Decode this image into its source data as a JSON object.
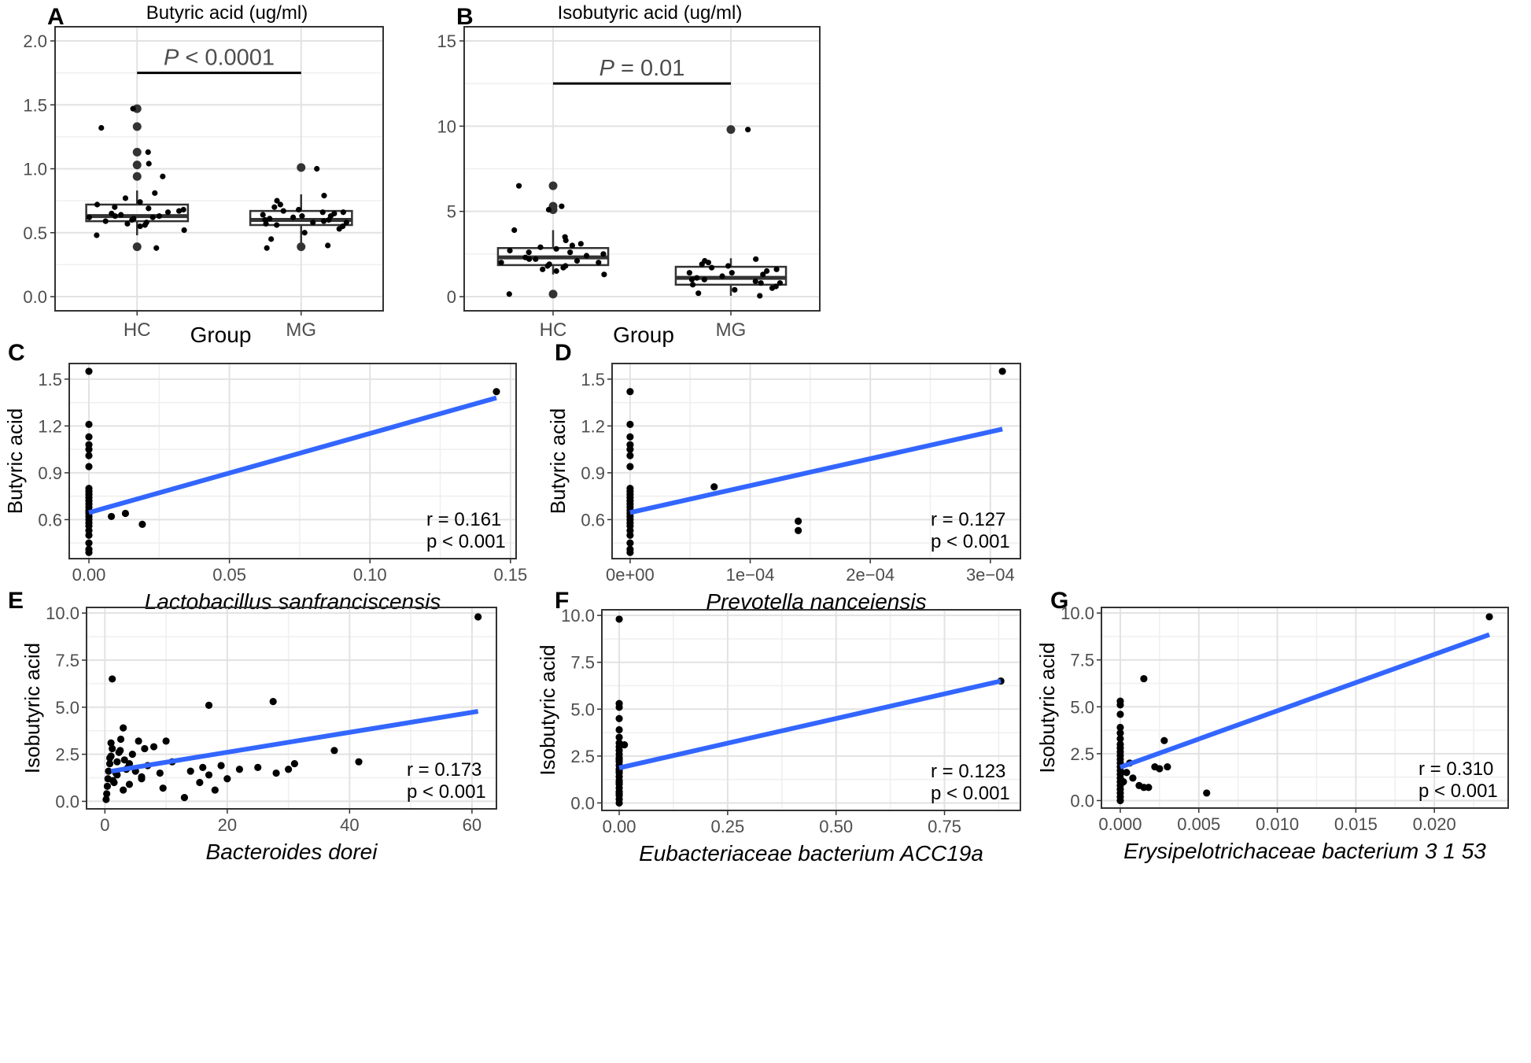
{
  "chart_data": [
    {
      "id": "A",
      "type": "box",
      "panel_label": "A",
      "title": "Butyric acid (ug/ml)",
      "xlabel": "Group",
      "categories": [
        "HC",
        "MG"
      ],
      "ylim": [
        0,
        2.0
      ],
      "yticks": [
        "0.0",
        "0.5",
        "1.0",
        "1.5",
        "2.0"
      ],
      "ytick_values": [
        0,
        0.5,
        1.0,
        1.5,
        2.0
      ],
      "boxes": [
        {
          "group": "HC",
          "q1": 0.59,
          "median": 0.63,
          "q3": 0.72,
          "whisker_low": 0.48,
          "whisker_high": 0.83,
          "outliers": [
            0.94,
            1.03,
            1.13,
            1.33,
            1.47,
            0.39
          ]
        },
        {
          "group": "MG",
          "q1": 0.56,
          "median": 0.6,
          "q3": 0.67,
          "whisker_low": 0.42,
          "whisker_high": 0.8,
          "outliers": [
            1.01,
            0.39
          ]
        }
      ],
      "points": {
        "HC": [
          0.38,
          0.48,
          0.52,
          0.55,
          0.57,
          0.58,
          0.6,
          0.61,
          0.62,
          0.63,
          0.64,
          0.65,
          0.66,
          0.68,
          0.7,
          0.72,
          0.74,
          0.77,
          0.81,
          0.94,
          1.04,
          1.13,
          1.32,
          1.47,
          0.56,
          0.59,
          0.63,
          0.67,
          0.69,
          0.62
        ],
        "MG": [
          0.38,
          0.4,
          0.45,
          0.5,
          0.53,
          0.55,
          0.57,
          0.58,
          0.59,
          0.6,
          0.61,
          0.62,
          0.63,
          0.64,
          0.65,
          0.66,
          0.67,
          0.68,
          0.7,
          0.72,
          0.75,
          0.79,
          1.0,
          0.56,
          0.6,
          0.63,
          0.58,
          0.66
        ]
      },
      "annotation": {
        "p_symbol": "P",
        "p_rest": " < 0.0001",
        "y": 1.75
      }
    },
    {
      "id": "B",
      "type": "box",
      "panel_label": "B",
      "title": "Isobutyric acid (ug/ml)",
      "xlabel": "Group",
      "categories": [
        "HC",
        "MG"
      ],
      "ylim": [
        0,
        15
      ],
      "yticks": [
        "0",
        "5",
        "10",
        "15"
      ],
      "ytick_values": [
        0,
        5,
        10,
        15
      ],
      "boxes": [
        {
          "group": "HC",
          "q1": 1.85,
          "median": 2.3,
          "q3": 2.85,
          "whisker_low": 1.3,
          "whisker_high": 3.9,
          "outliers": [
            5.1,
            5.3,
            6.5,
            0.15
          ]
        },
        {
          "group": "MG",
          "q1": 0.7,
          "median": 1.1,
          "q3": 1.75,
          "whisker_low": 0.05,
          "whisker_high": 2.25,
          "outliers": [
            9.8
          ]
        }
      ],
      "points": {
        "HC": [
          0.15,
          1.3,
          1.5,
          1.6,
          1.7,
          1.8,
          1.9,
          2.0,
          2.1,
          2.2,
          2.3,
          2.4,
          2.5,
          2.6,
          2.7,
          2.8,
          2.9,
          3.0,
          3.1,
          3.3,
          3.5,
          3.9,
          5.1,
          5.3,
          6.5,
          2.2,
          2.0,
          1.8,
          2.6
        ],
        "MG": [
          0.05,
          0.2,
          0.4,
          0.5,
          0.6,
          0.7,
          0.8,
          0.9,
          1.0,
          1.1,
          1.2,
          1.3,
          1.4,
          1.5,
          1.6,
          1.7,
          1.8,
          1.9,
          2.0,
          2.1,
          2.2,
          9.8,
          1.0,
          0.8,
          1.4
        ]
      },
      "annotation": {
        "p_symbol": "P",
        "p_rest": " = 0.01",
        "y": 12.5
      }
    },
    {
      "id": "C",
      "type": "scatter",
      "panel_label": "C",
      "xlabel": "Lactobacillus sanfranciscensis",
      "ylabel": "Butyric acid",
      "xlim": [
        -0.007,
        0.152
      ],
      "ylim": [
        0.35,
        1.6
      ],
      "xticks": [
        "0.00",
        "0.05",
        "0.10",
        "0.15"
      ],
      "xtick_values": [
        0,
        0.05,
        0.1,
        0.15
      ],
      "yticks": [
        "0.6",
        "0.9",
        "1.2",
        "1.5"
      ],
      "ytick_values": [
        0.6,
        0.9,
        1.2,
        1.5
      ],
      "x": [
        0,
        0,
        0,
        0,
        0,
        0,
        0,
        0,
        0,
        0,
        0,
        0,
        0,
        0,
        0,
        0,
        0,
        0,
        0,
        0,
        0,
        0,
        0,
        0,
        0,
        0,
        0.008,
        0.013,
        0.019,
        0.145
      ],
      "y": [
        0.39,
        0.41,
        0.45,
        0.5,
        0.53,
        0.56,
        0.58,
        0.6,
        0.62,
        0.64,
        0.66,
        0.68,
        0.7,
        0.72,
        0.74,
        0.76,
        0.78,
        0.8,
        0.94,
        1.01,
        1.05,
        1.08,
        1.13,
        1.21,
        1.55,
        0.65,
        0.62,
        0.64,
        0.57,
        1.42
      ],
      "fit": {
        "x": [
          0,
          0.145
        ],
        "y": [
          0.645,
          1.38
        ]
      },
      "stats": [
        "r =  0.161",
        "p <  0.001"
      ]
    },
    {
      "id": "D",
      "type": "scatter",
      "panel_label": "D",
      "xlabel": "Prevotella nanceiensis",
      "ylabel": "Butyric acid",
      "xlim": [
        -1.5e-05,
        0.000325
      ],
      "ylim": [
        0.35,
        1.6
      ],
      "xticks": [
        "0e+00",
        "1e−04",
        "2e−04",
        "3e−04"
      ],
      "xtick_values": [
        0,
        0.0001,
        0.0002,
        0.0003
      ],
      "yticks": [
        "0.6",
        "0.9",
        "1.2",
        "1.5"
      ],
      "ytick_values": [
        0.6,
        0.9,
        1.2,
        1.5
      ],
      "x": [
        0,
        0,
        0,
        0,
        0,
        0,
        0,
        0,
        0,
        0,
        0,
        0,
        0,
        0,
        0,
        0,
        0,
        0,
        0,
        0,
        0,
        0,
        0,
        0,
        0,
        7e-05,
        0.00014,
        0.00014,
        0.00031
      ],
      "y": [
        0.39,
        0.41,
        0.45,
        0.5,
        0.53,
        0.56,
        0.58,
        0.6,
        0.62,
        0.64,
        0.66,
        0.68,
        0.7,
        0.72,
        0.74,
        0.76,
        0.78,
        0.8,
        0.94,
        1.01,
        1.05,
        1.08,
        1.13,
        1.21,
        1.42,
        0.81,
        0.59,
        0.53,
        1.55
      ],
      "fit": {
        "x": [
          0,
          0.00031
        ],
        "y": [
          0.645,
          1.18
        ]
      },
      "stats": [
        "r =  0.127",
        "p <  0.001"
      ]
    },
    {
      "id": "E",
      "type": "scatter",
      "panel_label": "E",
      "xlabel": "Bacteroides dorei",
      "ylabel": "Isobutyric acid",
      "xlim": [
        -3,
        64
      ],
      "ylim": [
        -0.4,
        10.3
      ],
      "xticks": [
        "0",
        "20",
        "40",
        "60"
      ],
      "xtick_values": [
        0,
        20,
        40,
        60
      ],
      "yticks": [
        "0.0",
        "2.5",
        "5.0",
        "7.5",
        "10.0"
      ],
      "ytick_values": [
        0,
        2.5,
        5,
        7.5,
        10
      ],
      "x": [
        0.2,
        0.3,
        0.4,
        0.5,
        0.6,
        0.8,
        1.0,
        1.2,
        1.5,
        1.8,
        2.0,
        2.3,
        2.6,
        3.0,
        3.2,
        3.5,
        4.0,
        4.5,
        5.0,
        5.5,
        6.0,
        6.5,
        7.0,
        8.0,
        9.0,
        10.0,
        1.0,
        2.0,
        3.0,
        4.0,
        0.8,
        1.3,
        2.5,
        3.8,
        6.0,
        9.5,
        11.0,
        13.0,
        14.0,
        15.5,
        16.0,
        17.0,
        18.0,
        19.0,
        20.0,
        22.0,
        25.0,
        28.0,
        30.0,
        31.0,
        37.5,
        41.5,
        17.0,
        27.5,
        1.2,
        61.0
      ],
      "y": [
        0.1,
        0.4,
        0.8,
        1.2,
        1.6,
        2.0,
        2.4,
        2.8,
        1.0,
        1.5,
        2.1,
        2.6,
        3.3,
        3.9,
        2.2,
        1.7,
        0.9,
        2.5,
        1.6,
        3.2,
        1.2,
        2.8,
        1.9,
        2.9,
        1.5,
        3.2,
        3.1,
        1.4,
        0.6,
        2.0,
        2.3,
        1.1,
        2.7,
        1.8,
        1.3,
        0.7,
        2.1,
        0.2,
        1.6,
        1.0,
        1.8,
        1.4,
        0.6,
        1.9,
        1.2,
        1.7,
        1.8,
        1.5,
        1.7,
        2.0,
        2.7,
        2.1,
        5.1,
        5.3,
        6.5,
        9.8
      ],
      "fit": {
        "x": [
          1,
          61
        ],
        "y": [
          1.6,
          4.78
        ]
      },
      "stats": [
        "r =  0.173",
        "p < 0.001"
      ]
    },
    {
      "id": "F",
      "type": "scatter",
      "panel_label": "F",
      "xlabel": "Eubacteriaceae bacterium ACC19a",
      "ylabel": "Isobutyric acid",
      "xlim": [
        -0.04,
        0.925
      ],
      "ylim": [
        -0.4,
        10.3
      ],
      "xticks": [
        "0.00",
        "0.25",
        "0.50",
        "0.75"
      ],
      "xtick_values": [
        0,
        0.25,
        0.5,
        0.75
      ],
      "yticks": [
        "0.0",
        "2.5",
        "5.0",
        "7.5",
        "10.0"
      ],
      "ytick_values": [
        0,
        2.5,
        5,
        7.5,
        10
      ],
      "x": [
        0,
        0,
        0,
        0,
        0,
        0,
        0,
        0,
        0,
        0,
        0,
        0,
        0,
        0,
        0,
        0,
        0,
        0,
        0,
        0,
        0,
        0,
        0,
        0,
        0,
        0,
        0,
        0.012,
        0.88
      ],
      "y": [
        0.0,
        0.2,
        0.4,
        0.6,
        0.8,
        1.0,
        1.2,
        1.4,
        1.6,
        1.8,
        2.0,
        2.2,
        2.4,
        2.6,
        2.8,
        3.0,
        3.2,
        3.5,
        3.9,
        4.5,
        5.1,
        5.3,
        9.8,
        0.5,
        1.1,
        2.3,
        1.7,
        3.1,
        6.5
      ],
      "fit": {
        "x": [
          0,
          0.88
        ],
        "y": [
          1.87,
          6.5
        ]
      },
      "stats": [
        "r =  0.123",
        "p <  0.001"
      ]
    },
    {
      "id": "G",
      "type": "scatter",
      "panel_label": "G",
      "xlabel": "Erysipelotrichaceae bacterium 3 1 53",
      "ylabel": "Isobutyric acid",
      "xlim": [
        -0.0012,
        0.0247
      ],
      "ylim": [
        -0.4,
        10.3
      ],
      "xticks": [
        "0.000",
        "0.005",
        "0.010",
        "0.015",
        "0.020"
      ],
      "xtick_values": [
        0,
        0.005,
        0.01,
        0.015,
        0.02
      ],
      "yticks": [
        "0.0",
        "2.5",
        "5.0",
        "7.5",
        "10.0"
      ],
      "ytick_values": [
        0,
        2.5,
        5,
        7.5,
        10
      ],
      "x": [
        0,
        0,
        0,
        0,
        0,
        0,
        0,
        0,
        0,
        0,
        0,
        0,
        0,
        0,
        0,
        0,
        0,
        0,
        0,
        0,
        0,
        0,
        0.0002,
        0.0004,
        0.0006,
        0.0008,
        0.0012,
        0.0015,
        0.0018,
        0.0022,
        0.0025,
        0.0028,
        0.003,
        0.0055,
        0.0015,
        0.0235
      ],
      "y": [
        0.0,
        0.2,
        0.4,
        0.6,
        0.8,
        1.0,
        1.2,
        1.4,
        1.6,
        1.8,
        2.0,
        2.2,
        2.4,
        2.6,
        2.8,
        3.0,
        3.3,
        3.6,
        3.9,
        4.6,
        5.1,
        5.3,
        1.0,
        1.5,
        2.0,
        1.2,
        0.8,
        0.7,
        0.7,
        1.8,
        1.7,
        3.2,
        1.8,
        0.4,
        6.5,
        9.8
      ],
      "fit": {
        "x": [
          0,
          0.0235
        ],
        "y": [
          1.78,
          8.85
        ]
      },
      "stats": [
        "r =  0.310",
        "p < 0.001"
      ]
    }
  ]
}
